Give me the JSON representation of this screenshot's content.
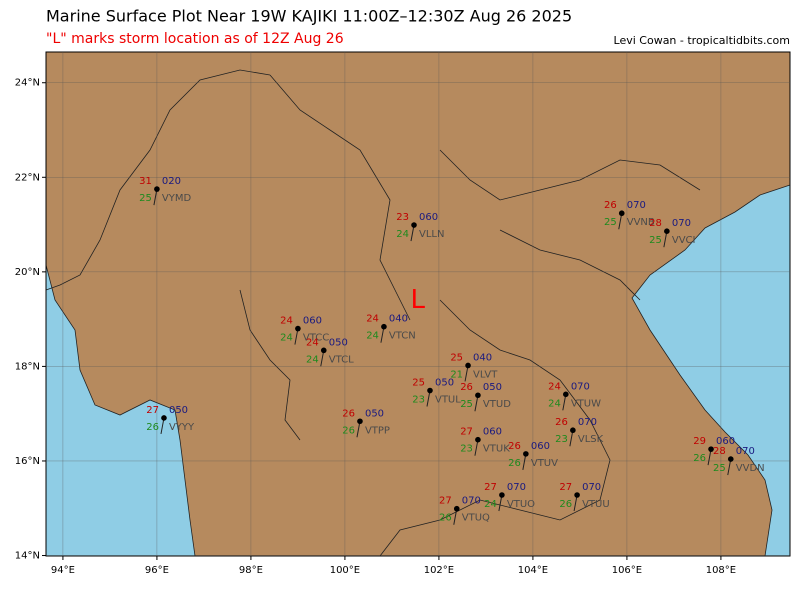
{
  "header": {
    "title": "Marine Surface Plot Near 19W KAJIKI 11:00Z–12:30Z Aug 26 2025",
    "subtitle": "\"L\" marks storm location as of 12Z Aug 26",
    "credit": "Levi Cowan - tropicaltidbits.com"
  },
  "map": {
    "lonlim": [
      93.64,
      109.47
    ],
    "latlim": [
      13.99,
      24.65
    ],
    "lonticks": [
      {
        "value": 94,
        "label": "94°E"
      },
      {
        "value": 96,
        "label": "96°E"
      },
      {
        "value": 98,
        "label": "98°E"
      },
      {
        "value": 100,
        "label": "100°E"
      },
      {
        "value": 102,
        "label": "102°E"
      },
      {
        "value": 104,
        "label": "104°E"
      },
      {
        "value": 106,
        "label": "106°E"
      },
      {
        "value": 108,
        "label": "108°E"
      }
    ],
    "latticks": [
      {
        "value": 14,
        "label": "14°N"
      },
      {
        "value": 16,
        "label": "16°N"
      },
      {
        "value": 18,
        "label": "18°N"
      },
      {
        "value": 20,
        "label": "20°N"
      },
      {
        "value": 22,
        "label": "22°N"
      },
      {
        "value": 24,
        "label": "24°N"
      }
    ],
    "storm": {
      "label": "L",
      "lon": 101.55,
      "lat": 19.39
    },
    "stations": [
      {
        "id": "VYMD",
        "lon": 96.0,
        "lat": 21.75,
        "temp": "31",
        "pres": "020",
        "dew": "25"
      },
      {
        "id": "VLLN",
        "lon": 101.47,
        "lat": 20.99,
        "temp": "23",
        "pres": "060",
        "dew": "24"
      },
      {
        "id": "VVNB",
        "lon": 105.89,
        "lat": 21.24,
        "temp": "26",
        "pres": "070",
        "dew": "25"
      },
      {
        "id": "VVCI",
        "lon": 106.85,
        "lat": 20.86,
        "temp": "28",
        "pres": "070",
        "dew": "25"
      },
      {
        "id": "VTCC",
        "lon": 99.0,
        "lat": 18.8,
        "temp": "24",
        "pres": "060",
        "dew": "24"
      },
      {
        "id": "VTCN",
        "lon": 100.83,
        "lat": 18.84,
        "temp": "24",
        "pres": "040",
        "dew": "24"
      },
      {
        "id": "VTCL",
        "lon": 99.55,
        "lat": 18.34,
        "temp": "24",
        "pres": "050",
        "dew": "24"
      },
      {
        "id": "VLVT",
        "lon": 102.62,
        "lat": 18.02,
        "temp": "25",
        "pres": "040",
        "dew": "21"
      },
      {
        "id": "VTUD",
        "lon": 102.83,
        "lat": 17.39,
        "temp": "26",
        "pres": "050",
        "dew": "25"
      },
      {
        "id": "VTUL",
        "lon": 101.81,
        "lat": 17.49,
        "temp": "25",
        "pres": "050",
        "dew": "23"
      },
      {
        "id": "VTUW",
        "lon": 104.7,
        "lat": 17.41,
        "temp": "24",
        "pres": "070",
        "dew": "24"
      },
      {
        "id": "VTPP",
        "lon": 100.32,
        "lat": 16.84,
        "temp": "26",
        "pres": "050",
        "dew": "26"
      },
      {
        "id": "VYYY",
        "lon": 96.15,
        "lat": 16.91,
        "temp": "27",
        "pres": "050",
        "dew": "26"
      },
      {
        "id": "VTUK",
        "lon": 102.83,
        "lat": 16.45,
        "temp": "27",
        "pres": "060",
        "dew": "23"
      },
      {
        "id": "VLSK",
        "lon": 104.85,
        "lat": 16.65,
        "temp": "26",
        "pres": "070",
        "dew": "23"
      },
      {
        "id": "VTUV",
        "lon": 103.85,
        "lat": 16.15,
        "temp": "26",
        "pres": "060",
        "dew": "26"
      },
      {
        "lon": 107.79,
        "lat": 16.25,
        "temp": "29",
        "pres": "060",
        "dew": "26"
      },
      {
        "id": "VVDN",
        "lon": 108.21,
        "lat": 16.04,
        "temp": "28",
        "pres": "070",
        "dew": "25"
      },
      {
        "id": "VTUQ",
        "lon": 102.38,
        "lat": 14.99,
        "temp": "27",
        "pres": "070",
        "dew": "26"
      },
      {
        "id": "VTUO",
        "lon": 103.34,
        "lat": 15.28,
        "temp": "27",
        "pres": "070",
        "dew": "24"
      },
      {
        "id": "VTUU",
        "lon": 104.94,
        "lat": 15.28,
        "temp": "27",
        "pres": "070",
        "dew": "26"
      }
    ]
  }
}
